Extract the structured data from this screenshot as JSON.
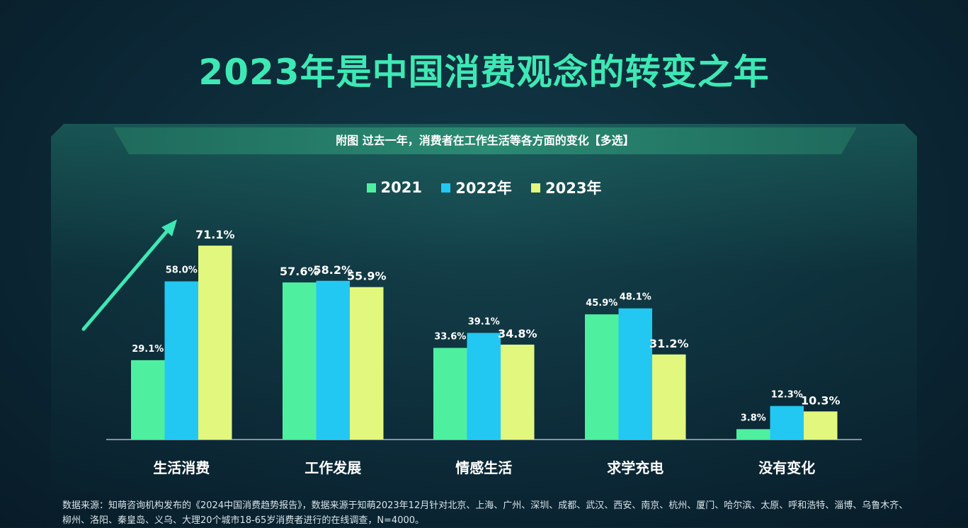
{
  "title": "2023年是中国消费观念的转变之年",
  "subtitle": "附图  过去一年，消费者在工作生活等各方面的变化【多选】",
  "footer": "数据来源：知萌咨询机构发布的《2024中国消费趋势报告》，数据来源于知萌2023年12月针对北京、上海、广州、深圳、成都、武汉、西安、南京、杭州、厦门、哈尔滨、太原、呼和浩特、淄博、乌鲁木齐、柳州、洛阳、秦皇岛、义乌、大理20个城市18-65岁消费者进行的在线调查，N=4000。",
  "chart_data": {
    "type": "bar",
    "categories": [
      "生活消费",
      "工作发展",
      "情感生活",
      "求学充电",
      "没有变化"
    ],
    "series": [
      {
        "name": "2021",
        "color": "#4ef0a0",
        "values": [
          29.1,
          57.6,
          33.6,
          45.9,
          3.8
        ],
        "labels": [
          "29.1%",
          "57.6%",
          "33.6%",
          "45.9%",
          "3.8%"
        ]
      },
      {
        "name": "2022年",
        "color": "#22c8f2",
        "values": [
          58.0,
          58.2,
          39.1,
          48.1,
          12.3
        ],
        "labels": [
          "58.0%",
          "58.2%",
          "39.1%",
          "48.1%",
          "12.3%"
        ]
      },
      {
        "name": "2023年",
        "color": "#e2f77e",
        "values": [
          71.1,
          55.9,
          34.8,
          31.2,
          10.3
        ],
        "labels": [
          "71.1%",
          "55.9%",
          "34.8%",
          "31.2%",
          "10.3%"
        ]
      }
    ],
    "legend": "top-center",
    "grid": false,
    "ylim": [
      0,
      75
    ],
    "annotation": "upward-arrow"
  }
}
